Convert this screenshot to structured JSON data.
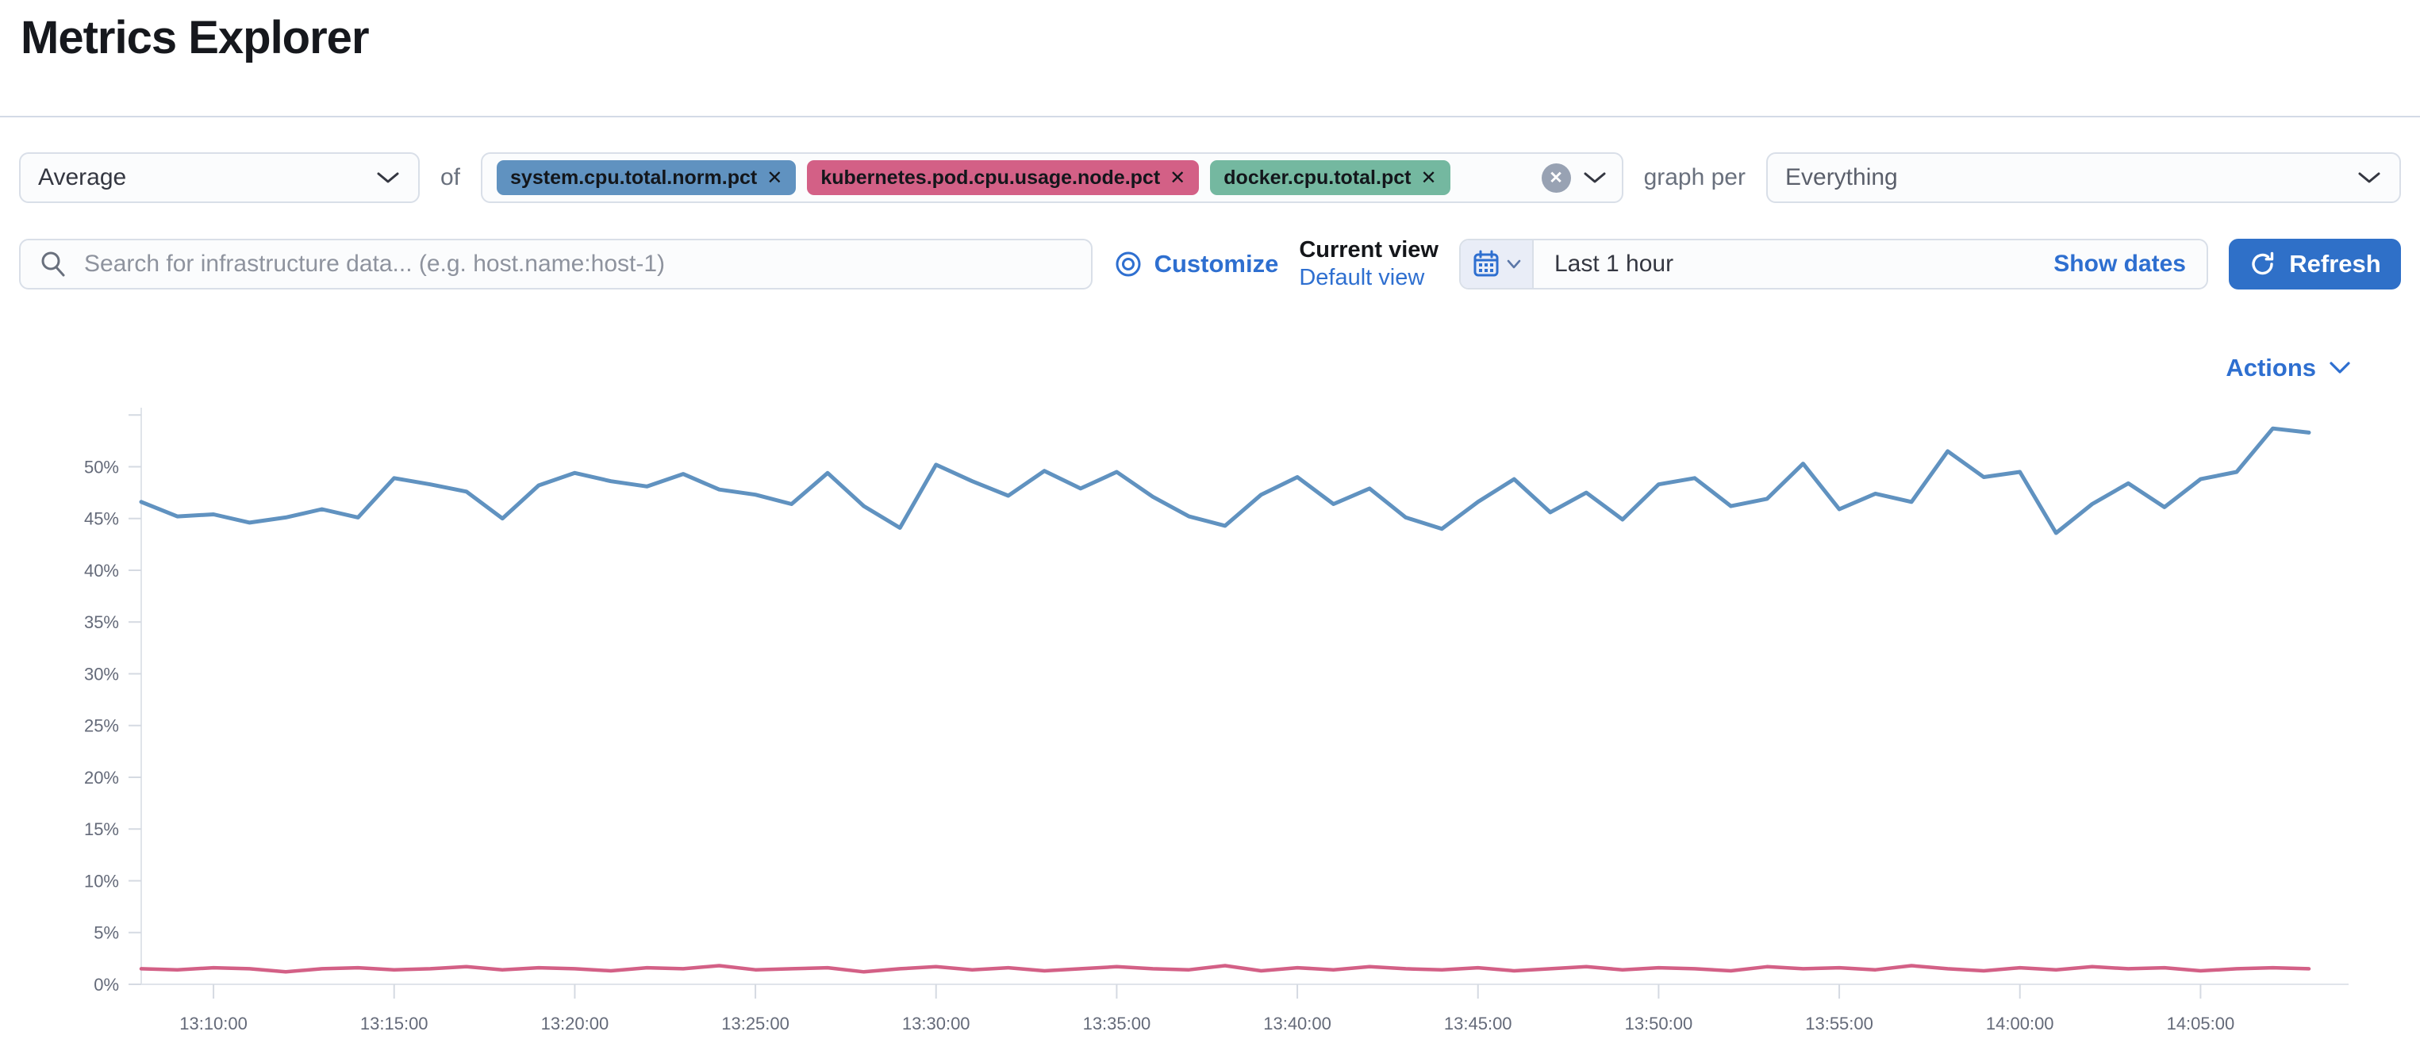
{
  "page": {
    "title": "Metrics Explorer"
  },
  "controls": {
    "aggregation": {
      "value": "Average"
    },
    "of_label": "of",
    "metric_field": {
      "badges": [
        {
          "label": "system.cpu.total.norm.pct",
          "remove_icon": "✕",
          "color": "#6092C0"
        },
        {
          "label": "kubernetes.pod.cpu.usage.node.pct",
          "remove_icon": "✕",
          "color": "#D36086"
        },
        {
          "label": "docker.cpu.total.pct",
          "remove_icon": "✕",
          "color": "#74B8A0"
        }
      ]
    },
    "graph_per_label": "graph per",
    "group_by": {
      "value": "Everything"
    }
  },
  "toolbar": {
    "search": {
      "placeholder": "Search for infrastructure data... (e.g. host.name:host-1)"
    },
    "customize_label": "Customize",
    "view_switcher": {
      "current": "Current view",
      "default": "Default view"
    },
    "time_picker": {
      "range": "Last 1 hour",
      "show_dates_label": "Show dates"
    },
    "refresh_label": "Refresh"
  },
  "actions_label": "Actions",
  "colors": {
    "link_blue": "#2E6FD0",
    "button_blue": "#2F70C8",
    "series_blue": "#6092C0",
    "series_pink": "#D36086",
    "badge_green": "#74B8A0",
    "axis_text": "#646a79",
    "axis_line": "#e0e4ea",
    "tick_line": "#d5dae2"
  },
  "chart_data": {
    "type": "line",
    "title": "",
    "xlabel": "",
    "ylabel": "",
    "legend": "none",
    "grid": false,
    "ylim": [
      0,
      55.4
    ],
    "y_ticks": [
      0,
      5,
      10,
      15,
      20,
      25,
      30,
      35,
      40,
      45,
      50
    ],
    "y_tick_suffix": "%",
    "x": [
      "13:08:00",
      "13:09:00",
      "13:10:00",
      "13:11:00",
      "13:12:00",
      "13:13:00",
      "13:14:00",
      "13:15:00",
      "13:16:00",
      "13:17:00",
      "13:18:00",
      "13:19:00",
      "13:20:00",
      "13:21:00",
      "13:22:00",
      "13:23:00",
      "13:24:00",
      "13:25:00",
      "13:26:00",
      "13:27:00",
      "13:28:00",
      "13:29:00",
      "13:30:00",
      "13:31:00",
      "13:32:00",
      "13:33:00",
      "13:34:00",
      "13:35:00",
      "13:36:00",
      "13:37:00",
      "13:38:00",
      "13:39:00",
      "13:40:00",
      "13:41:00",
      "13:42:00",
      "13:43:00",
      "13:44:00",
      "13:45:00",
      "13:46:00",
      "13:47:00",
      "13:48:00",
      "13:49:00",
      "13:50:00",
      "13:51:00",
      "13:52:00",
      "13:53:00",
      "13:54:00",
      "13:55:00",
      "13:56:00",
      "13:57:00",
      "13:58:00",
      "13:59:00",
      "14:00:00",
      "14:01:00",
      "14:02:00",
      "14:03:00",
      "14:04:00",
      "14:05:00",
      "14:06:00",
      "14:07:00",
      "14:08:00"
    ],
    "x_tick_labels": [
      "13:10:00",
      "13:15:00",
      "13:20:00",
      "13:25:00",
      "13:30:00",
      "13:35:00",
      "13:40:00",
      "13:45:00",
      "13:50:00",
      "13:55:00",
      "14:00:00",
      "14:05:00"
    ],
    "series": [
      {
        "name": "system.cpu.total.norm.pct",
        "color": "#6092C0",
        "unit": "%",
        "values": [
          46.6,
          45.2,
          45.4,
          44.6,
          45.1,
          45.9,
          45.1,
          48.9,
          48.3,
          47.6,
          45.0,
          48.2,
          49.4,
          48.6,
          48.1,
          49.3,
          47.8,
          47.3,
          46.4,
          49.4,
          46.2,
          44.1,
          50.2,
          48.6,
          47.2,
          49.6,
          47.9,
          49.5,
          47.1,
          45.2,
          44.3,
          47.3,
          49.0,
          46.4,
          47.9,
          45.1,
          44.0,
          46.6,
          48.8,
          45.6,
          47.5,
          44.9,
          48.3,
          48.9,
          46.2,
          46.9,
          50.3,
          45.9,
          47.4,
          46.6,
          51.5,
          49.0,
          49.5,
          43.6,
          46.4,
          48.4,
          46.1,
          48.8,
          49.5,
          53.7,
          53.3
        ]
      },
      {
        "name": "kubernetes.pod.cpu.usage.node.pct",
        "color": "#D36086",
        "unit": "%",
        "values": [
          1.5,
          1.4,
          1.6,
          1.5,
          1.2,
          1.5,
          1.6,
          1.4,
          1.5,
          1.7,
          1.4,
          1.6,
          1.5,
          1.3,
          1.6,
          1.5,
          1.8,
          1.4,
          1.5,
          1.6,
          1.2,
          1.5,
          1.7,
          1.4,
          1.6,
          1.3,
          1.5,
          1.7,
          1.5,
          1.4,
          1.8,
          1.3,
          1.6,
          1.4,
          1.7,
          1.5,
          1.4,
          1.6,
          1.3,
          1.5,
          1.7,
          1.4,
          1.6,
          1.5,
          1.3,
          1.7,
          1.5,
          1.6,
          1.4,
          1.8,
          1.5,
          1.3,
          1.6,
          1.4,
          1.7,
          1.5,
          1.6,
          1.3,
          1.5,
          1.6,
          1.5
        ]
      }
    ]
  }
}
